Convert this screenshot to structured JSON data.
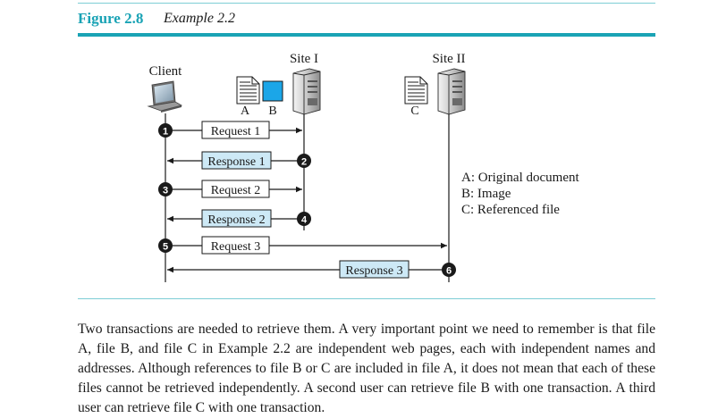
{
  "figure": {
    "number": "Figure 2.8",
    "caption": "Example 2.2"
  },
  "diagram": {
    "client_label": "Client",
    "site1_label": "Site I",
    "site2_label": "Site II",
    "files": {
      "a": "A",
      "b": "B",
      "c": "C"
    },
    "messages": [
      {
        "step": "1",
        "label": "Request 1"
      },
      {
        "step": "2",
        "label": "Response 1"
      },
      {
        "step": "3",
        "label": "Request 2"
      },
      {
        "step": "4",
        "label": "Response 2"
      },
      {
        "step": "5",
        "label": "Request 3"
      },
      {
        "step": "6",
        "label": "Response 3"
      }
    ],
    "legend": [
      "A: Original document",
      "B: Image",
      "C: Referenced file"
    ],
    "colors": {
      "accent": "#1aa3b5",
      "response_fill": "#cde9f6",
      "image_fill": "#1ba6e8"
    }
  },
  "body_text": "Two transactions are needed to retrieve them. A very important point we need to remember is that file A, file B, and file C in Example 2.2 are independent web pages, each with independent names and addresses. Although references to file B or C are included in file A, it does not mean that each of these files cannot be retrieved independently. A second user can retrieve file B with one transaction. A third user can retrieve file C with one transaction."
}
